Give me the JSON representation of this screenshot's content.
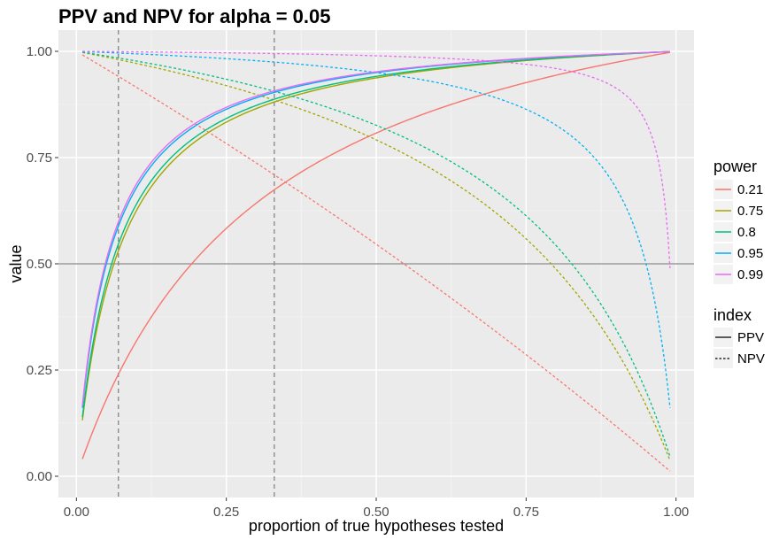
{
  "chart_data": {
    "type": "line",
    "title": "PPV and NPV for alpha = 0.05",
    "xlabel": "proportion of true hypotheses tested",
    "ylabel": "value",
    "xlim": [
      -0.03,
      1.03
    ],
    "ylim": [
      -0.05,
      1.05
    ],
    "x_ticks": [
      0.0,
      0.25,
      0.5,
      0.75,
      1.0
    ],
    "x_tick_labels": [
      "0.00",
      "0.25",
      "0.50",
      "0.75",
      "1.00"
    ],
    "y_ticks": [
      0.0,
      0.25,
      0.5,
      0.75,
      1.0
    ],
    "y_tick_labels": [
      "0.00",
      "0.25",
      "0.50",
      "0.75",
      "1.00"
    ],
    "grid": true,
    "alpha": 0.05,
    "x_range": [
      0.01,
      0.99
    ],
    "hline": 0.5,
    "vlines": [
      0.07,
      0.33
    ],
    "legend_position": "right",
    "legend_power": {
      "title": "power",
      "items": [
        {
          "label": "0.21",
          "color": "#F8766D"
        },
        {
          "label": "0.75",
          "color": "#A3A500"
        },
        {
          "label": "0.8",
          "color": "#00BF7D"
        },
        {
          "label": "0.95",
          "color": "#00B0F6"
        },
        {
          "label": "0.99",
          "color": "#E76BF3"
        }
      ]
    },
    "legend_index": {
      "title": "index",
      "items": [
        {
          "label": "PPV",
          "dash": "solid"
        },
        {
          "label": "NPV",
          "dash": "dotted"
        }
      ]
    },
    "series": [
      {
        "power": 0.21,
        "color": "#F8766D"
      },
      {
        "power": 0.75,
        "color": "#A3A500"
      },
      {
        "power": 0.8,
        "color": "#00BF7D"
      },
      {
        "power": 0.95,
        "color": "#00B0F6"
      },
      {
        "power": 0.99,
        "color": "#E76BF3"
      }
    ]
  }
}
